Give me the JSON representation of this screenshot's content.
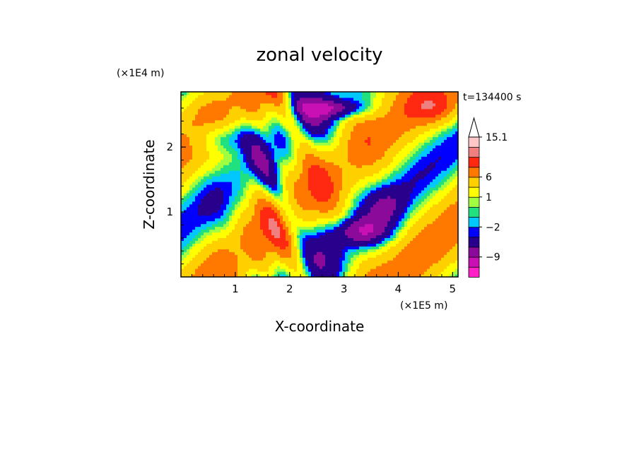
{
  "chart_data": {
    "type": "heatmap",
    "title": "zonal velocity",
    "xlabel": "X-coordinate",
    "ylabel": "Z-coordinate",
    "x_unit": "(×1E5 m)",
    "y_unit": "(×1E4 m)",
    "time_label": "t=134400 s",
    "xlim": [
      0,
      5.1
    ],
    "ylim": [
      0,
      2.85
    ],
    "x_ticks": [
      "1",
      "2",
      "3",
      "4",
      "5"
    ],
    "y_ticks": [
      "1",
      "2"
    ],
    "colorbar": {
      "labels": [
        "15.1",
        "6",
        "1",
        "−2",
        "−9"
      ],
      "levels": [
        -15,
        -12,
        -9,
        -6,
        -3,
        -2,
        -1,
        0,
        1,
        3,
        6,
        9,
        12,
        15.1
      ],
      "colors": [
        "#ff20c8",
        "#c810b4",
        "#8c0a9a",
        "#28008c",
        "#0000ff",
        "#00c8ff",
        "#20e080",
        "#a0ff40",
        "#ffff00",
        "#ffd000",
        "#ff7800",
        "#ff2810",
        "#f08080",
        "#ffc8c8"
      ],
      "extend_max": true
    },
    "field_description": "Wavy contour field of zonal velocity; dominant yellow/green background with tilted orange positive bands and dark-blue negative bands."
  }
}
